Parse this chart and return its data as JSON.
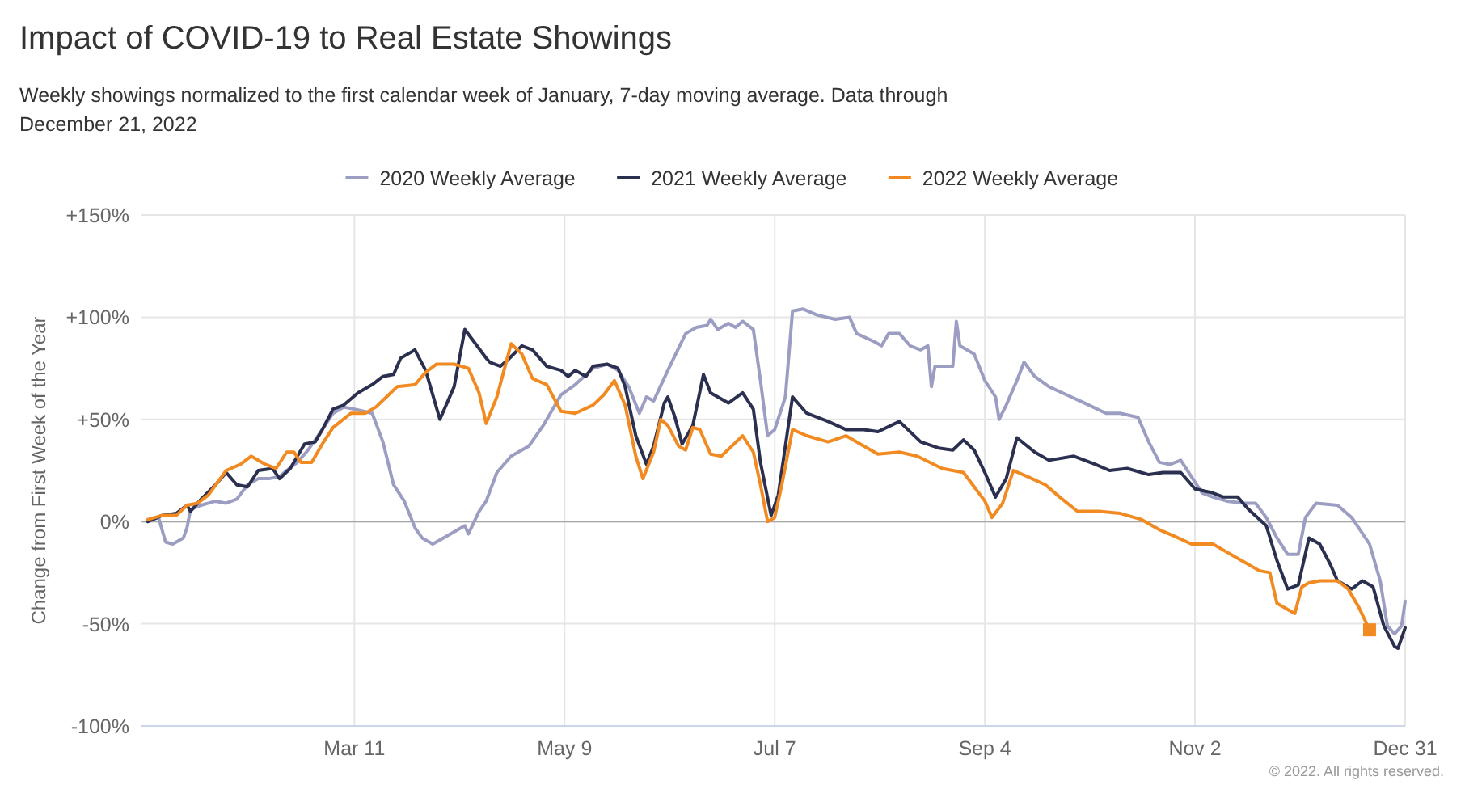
{
  "chart_data": {
    "type": "line",
    "title": "Impact of COVID-19 to Real Estate Showings",
    "subtitle": "Weekly showings normalized to the first calendar week of January, 7-day moving average. Data through December 21, 2022",
    "ylabel": "Change from First Week of the Year",
    "annotations": [
      "© 2022. All rights reserved."
    ],
    "xlim": [
      "--01-10",
      "--12-31"
    ],
    "xticks": [
      {
        "value": "--03-11",
        "label": "Mar 11"
      },
      {
        "value": "--05-09",
        "label": "May 9"
      },
      {
        "value": "--07-07",
        "label": "Jul 7"
      },
      {
        "value": "--09-04",
        "label": "Sep 4"
      },
      {
        "value": "--11-02",
        "label": "Nov 2"
      },
      {
        "value": "--12-31",
        "label": "Dec 31"
      }
    ],
    "ylim": [
      -100,
      150
    ],
    "yticks": [
      {
        "value": -100,
        "label": "-100%"
      },
      {
        "value": -50,
        "label": "-50%"
      },
      {
        "value": 0,
        "label": "0%"
      },
      {
        "value": 50,
        "label": "+50%"
      },
      {
        "value": 100,
        "label": "+100%"
      },
      {
        "value": 150,
        "label": "+150%"
      }
    ],
    "grid": true,
    "legend": "top",
    "ref_lines": [
      {
        "axis": "y",
        "value": 0,
        "color": "#a6a6a6"
      }
    ],
    "series": [
      {
        "name": "2020 Weekly Average",
        "color": "#9c9dc2",
        "x": [
          "--01-12",
          "--01-15",
          "--01-17",
          "--01-19",
          "--01-22",
          "--01-23",
          "--01-24",
          "--01-27",
          "--01-31",
          "--02-03",
          "--02-06",
          "--02-09",
          "--02-12",
          "--02-15",
          "--02-18",
          "--02-20",
          "--02-23",
          "--02-26",
          "--03-02",
          "--03-05",
          "--03-08",
          "--03-11",
          "--03-16",
          "--03-19",
          "--03-22",
          "--03-25",
          "--03-28",
          "--03-30",
          "--04-02",
          "--04-06",
          "--04-11",
          "--04-12",
          "--04-15",
          "--04-17",
          "--04-20",
          "--04-24",
          "--04-29",
          "--05-03",
          "--05-08",
          "--05-12",
          "--05-17",
          "--05-21",
          "--05-24",
          "--05-27",
          "--05-30",
          "--06-01",
          "--06-03",
          "--06-07",
          "--06-12",
          "--06-15",
          "--06-18",
          "--06-19",
          "--06-21",
          "--06-24",
          "--06-26",
          "--06-28",
          "--07-01",
          "--07-03",
          "--07-05",
          "--07-07",
          "--07-10",
          "--07-12",
          "--07-15",
          "--07-19",
          "--07-24",
          "--07-28",
          "--07-30",
          "--08-04",
          "--08-06",
          "--08-08",
          "--08-11",
          "--08-14",
          "--08-17",
          "--08-19",
          "--08-20",
          "--08-21",
          "--08-26",
          "--08-27",
          "--08-28",
          "--09-01",
          "--09-04",
          "--09-07",
          "--09-08",
          "--09-10",
          "--09-13",
          "--09-15",
          "--09-18",
          "--09-22",
          "--09-27",
          "--10-02",
          "--10-08",
          "--10-12",
          "--10-17",
          "--10-20",
          "--10-23",
          "--10-26",
          "--10-29",
          "--11-01",
          "--11-04",
          "--11-07",
          "--11-11",
          "--11-16",
          "--11-19",
          "--11-22",
          "--11-25",
          "--11-28",
          "--12-01",
          "--12-03",
          "--12-06",
          "--12-12",
          "--12-16",
          "--12-21",
          "--12-24",
          "--12-26",
          "--12-28",
          "--12-30",
          "--12-31"
        ],
        "values": [
          0,
          2,
          -10,
          -11,
          -8,
          -3,
          6,
          8,
          10,
          9,
          11,
          18,
          21,
          21,
          22,
          25,
          29,
          35,
          45,
          53,
          56,
          55,
          53,
          39,
          18,
          10,
          -3,
          -8,
          -11,
          -7,
          -2,
          -6,
          5,
          10,
          24,
          32,
          37,
          47,
          62,
          67,
          75,
          77,
          74,
          66,
          53,
          61,
          59,
          74,
          92,
          95,
          96,
          99,
          94,
          97,
          95,
          98,
          94,
          69,
          42,
          45,
          61,
          103,
          104,
          101,
          99,
          100,
          92,
          88,
          86,
          92,
          92,
          86,
          84,
          86,
          66,
          76,
          76,
          98,
          86,
          82,
          69,
          61,
          50,
          57,
          69,
          78,
          71,
          66,
          62,
          58,
          53,
          53,
          51,
          39,
          29,
          28,
          30,
          22,
          14,
          12,
          10,
          9,
          9,
          2,
          -8,
          -16,
          -16,
          2,
          9,
          8,
          2,
          -11,
          -29,
          -51,
          -55,
          -51,
          -39
        ]
      },
      {
        "name": "2021 Weekly Average",
        "color": "#2b3050",
        "x": [
          "--01-12",
          "--01-16",
          "--01-20",
          "--01-23",
          "--01-24",
          "--01-27",
          "--01-31",
          "--02-03",
          "--02-06",
          "--02-09",
          "--02-12",
          "--02-16",
          "--02-18",
          "--02-21",
          "--02-25",
          "--02-28",
          "--03-02",
          "--03-05",
          "--03-08",
          "--03-12",
          "--03-16",
          "--03-19",
          "--03-22",
          "--03-24",
          "--03-28",
          "--03-31",
          "--04-04",
          "--04-08",
          "--04-11",
          "--04-14",
          "--04-17",
          "--04-18",
          "--04-21",
          "--04-23",
          "--04-27",
          "--04-30",
          "--05-04",
          "--05-08",
          "--05-10",
          "--05-12",
          "--05-15",
          "--05-17",
          "--05-21",
          "--05-24",
          "--05-26",
          "--05-29",
          "--06-01",
          "--06-03",
          "--06-06",
          "--06-07",
          "--06-09",
          "--06-11",
          "--06-14",
          "--06-17",
          "--06-19",
          "--06-24",
          "--06-28",
          "--07-01",
          "--07-03",
          "--07-06",
          "--07-08",
          "--07-12",
          "--07-16",
          "--07-22",
          "--07-27",
          "--08-01",
          "--08-05",
          "--08-11",
          "--08-17",
          "--08-22",
          "--08-26",
          "--08-29",
          "--09-01",
          "--09-04",
          "--09-07",
          "--09-10",
          "--09-13",
          "--09-18",
          "--09-22",
          "--09-29",
          "--10-05",
          "--10-09",
          "--10-14",
          "--10-20",
          "--10-24",
          "--10-29",
          "--11-02",
          "--11-07",
          "--11-10",
          "--11-14",
          "--11-17",
          "--11-22",
          "--11-25",
          "--11-28",
          "--12-01",
          "--12-04",
          "--12-07",
          "--12-10",
          "--12-12",
          "--12-16",
          "--12-19",
          "--12-22",
          "--12-25",
          "--12-28",
          "--12-29",
          "--12-31"
        ],
        "values": [
          0,
          3,
          4,
          8,
          5,
          11,
          18,
          24,
          18,
          17,
          25,
          26,
          21,
          26,
          38,
          39,
          45,
          55,
          57,
          63,
          67,
          71,
          72,
          80,
          84,
          74,
          50,
          66,
          94,
          87,
          80,
          78,
          76,
          79,
          86,
          84,
          76,
          74,
          71,
          74,
          71,
          76,
          77,
          75,
          66,
          42,
          28,
          37,
          58,
          61,
          51,
          38,
          47,
          72,
          63,
          58,
          63,
          55,
          29,
          3,
          13,
          61,
          53,
          49,
          45,
          45,
          44,
          49,
          39,
          36,
          35,
          40,
          35,
          24,
          12,
          21,
          41,
          34,
          30,
          32,
          28,
          25,
          26,
          23,
          24,
          24,
          16,
          14,
          12,
          12,
          6,
          -2,
          -19,
          -33,
          -31,
          -8,
          -11,
          -21,
          -29,
          -33,
          -29,
          -32,
          -51,
          -61,
          -62,
          -52
        ]
      },
      {
        "name": "2022 Weekly Average",
        "color": "#f28a22",
        "x": [
          "--01-12",
          "--01-16",
          "--01-20",
          "--01-23",
          "--01-26",
          "--01-29",
          "--02-03",
          "--02-07",
          "--02-10",
          "--02-14",
          "--02-17",
          "--02-20",
          "--02-22",
          "--02-24",
          "--02-27",
          "--03-02",
          "--03-05",
          "--03-10",
          "--03-14",
          "--03-17",
          "--03-20",
          "--03-23",
          "--03-28",
          "--03-31",
          "--04-03",
          "--04-08",
          "--04-12",
          "--04-15",
          "--04-17",
          "--04-20",
          "--04-24",
          "--04-27",
          "--04-30",
          "--05-04",
          "--05-08",
          "--05-12",
          "--05-17",
          "--05-20",
          "--05-23",
          "--05-26",
          "--05-29",
          "--05-31",
          "--06-03",
          "--06-05",
          "--06-07",
          "--06-10",
          "--06-12",
          "--06-14",
          "--06-16",
          "--06-19",
          "--06-22",
          "--06-25",
          "--06-28",
          "--07-01",
          "--07-03",
          "--07-05",
          "--07-07",
          "--07-09",
          "--07-12",
          "--07-16",
          "--07-22",
          "--07-27",
          "--08-01",
          "--08-05",
          "--08-11",
          "--08-16",
          "--08-23",
          "--08-29",
          "--09-01",
          "--09-04",
          "--09-06",
          "--09-09",
          "--09-12",
          "--09-16",
          "--09-21",
          "--09-25",
          "--09-30",
          "--10-06",
          "--10-12",
          "--10-18",
          "--10-23",
          "--10-27",
          "--11-01",
          "--11-07",
          "--11-11",
          "--11-16",
          "--11-20",
          "--11-23",
          "--11-25",
          "--11-30",
          "--12-02",
          "--12-04",
          "--12-07",
          "--12-12",
          "--12-15",
          "--12-18",
          "--12-21"
        ],
        "values": [
          1,
          3,
          3,
          8,
          9,
          13,
          25,
          28,
          32,
          28,
          26,
          34,
          34,
          29,
          29,
          38,
          46,
          53,
          53,
          56,
          61,
          66,
          67,
          73,
          77,
          77,
          75,
          63,
          48,
          61,
          87,
          82,
          70,
          67,
          54,
          53,
          57,
          62,
          69,
          57,
          32,
          21,
          34,
          50,
          47,
          37,
          35,
          46,
          45,
          33,
          32,
          37,
          42,
          34,
          18,
          0,
          2,
          18,
          45,
          42,
          39,
          42,
          37,
          33,
          34,
          32,
          26,
          24,
          17,
          10,
          2,
          9,
          25,
          22,
          18,
          12,
          5,
          5,
          4,
          1,
          -4,
          -7,
          -11,
          -11,
          -15,
          -20,
          -24,
          -25,
          -40,
          -45,
          -32,
          -30,
          -29,
          -29,
          -33,
          -42,
          -53
        ]
      },
      {
        "type": "scatter",
        "color": "#f28a22",
        "marker": "square",
        "x": [
          "--12-21"
        ],
        "values": [
          -53
        ]
      }
    ]
  }
}
